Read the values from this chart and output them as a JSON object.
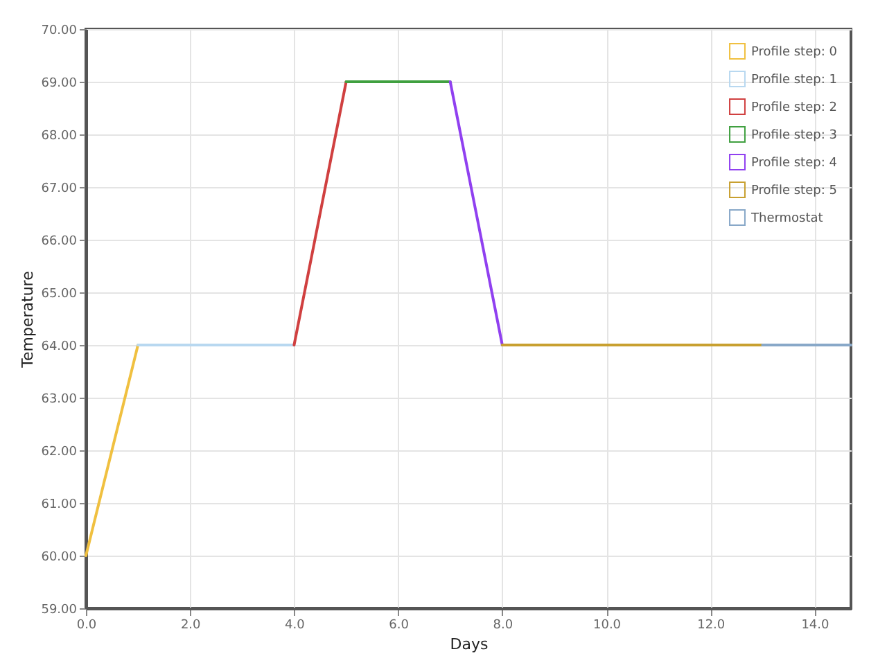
{
  "chart_data": {
    "type": "line",
    "xlabel": "Days",
    "ylabel": "Temperature",
    "series": [
      {
        "name": "Profile step: 0",
        "color": "#f0c040",
        "x": [
          0,
          1
        ],
        "values": [
          60,
          64
        ]
      },
      {
        "name": "Profile step: 1",
        "color": "#b8d8f0",
        "x": [
          1,
          4
        ],
        "values": [
          64,
          64
        ]
      },
      {
        "name": "Profile step: 2",
        "color": "#d04040",
        "x": [
          4,
          5
        ],
        "values": [
          64,
          69
        ]
      },
      {
        "name": "Profile step: 3",
        "color": "#40a040",
        "x": [
          5,
          7
        ],
        "values": [
          69,
          69
        ]
      },
      {
        "name": "Profile step: 4",
        "color": "#9040f0",
        "x": [
          7,
          8
        ],
        "values": [
          69,
          64
        ]
      },
      {
        "name": "Profile step: 5",
        "color": "#c8a030",
        "x": [
          8,
          13
        ],
        "values": [
          64,
          64
        ]
      },
      {
        "name": "Thermostat",
        "color": "#88a8c8",
        "x": [
          13,
          14.7
        ],
        "values": [
          64,
          64
        ]
      }
    ],
    "xlim": [
      0,
      14.7
    ],
    "xticks": [
      {
        "value": 0,
        "label": "0.0"
      },
      {
        "value": 2,
        "label": "2.0"
      },
      {
        "value": 4,
        "label": "4.0"
      },
      {
        "value": 6,
        "label": "6.0"
      },
      {
        "value": 8,
        "label": "8.0"
      },
      {
        "value": 10,
        "label": "10.0"
      },
      {
        "value": 12,
        "label": "12.0"
      },
      {
        "value": 14,
        "label": "14.0"
      }
    ],
    "ylim": [
      59,
      70
    ],
    "yticks": [
      {
        "value": 59,
        "label": "59.00"
      },
      {
        "value": 60,
        "label": "60.00"
      },
      {
        "value": 61,
        "label": "61.00"
      },
      {
        "value": 62,
        "label": "62.00"
      },
      {
        "value": 63,
        "label": "63.00"
      },
      {
        "value": 64,
        "label": "64.00"
      },
      {
        "value": 65,
        "label": "65.00"
      },
      {
        "value": 66,
        "label": "66.00"
      },
      {
        "value": 67,
        "label": "67.00"
      },
      {
        "value": 68,
        "label": "68.00"
      },
      {
        "value": 69,
        "label": "69.00"
      },
      {
        "value": 70,
        "label": "70.00"
      }
    ],
    "grid": true,
    "legend": "top right",
    "marker": "none",
    "line_style": "solid"
  }
}
